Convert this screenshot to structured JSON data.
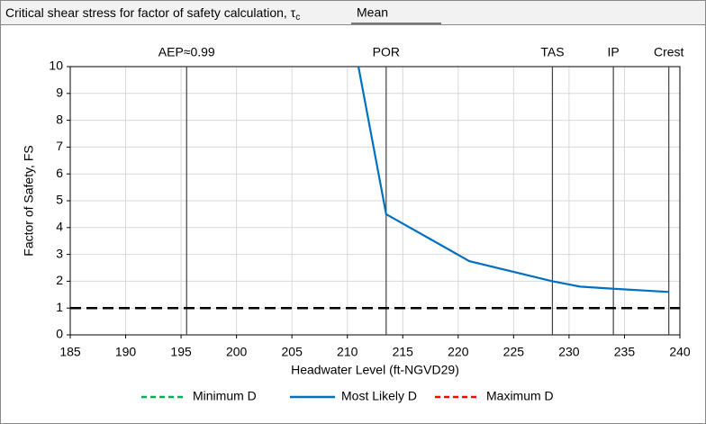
{
  "header": {
    "label": "Critical shear stress for factor of safety calculation, τ",
    "subscript": "c",
    "value": "Mean"
  },
  "chart_data": {
    "type": "line",
    "x_label": "Headwater Level  (ft-NGVD29)",
    "y_label": "Factor of Safety, FS",
    "x": [
      211,
      213.5,
      221,
      228.5,
      231,
      234,
      239
    ],
    "series": [
      {
        "name": "Minimum D",
        "color": "#00b050",
        "line_style": "dashed",
        "values": [
          null,
          null,
          null,
          null,
          null,
          null,
          null
        ]
      },
      {
        "name": "Most Likely D",
        "color": "#0070c0",
        "line_style": "solid",
        "values": [
          10,
          4.5,
          2.75,
          2.0,
          1.8,
          1.72,
          1.6
        ]
      },
      {
        "name": "Maximum D",
        "color": "#ff0000",
        "line_style": "dashed",
        "values": [
          null,
          null,
          null,
          null,
          null,
          null,
          null
        ]
      }
    ],
    "threshold": 1,
    "markers": [
      {
        "x": 195.5,
        "label": "AEP≈0.99"
      },
      {
        "x": 213.5,
        "label": "POR"
      },
      {
        "x": 228.5,
        "label": "TAS"
      },
      {
        "x": 234,
        "label": "IP"
      },
      {
        "x": 239,
        "label": "Crest"
      }
    ],
    "xlim": [
      185,
      240
    ],
    "xticks": [
      185,
      190,
      195,
      200,
      205,
      210,
      215,
      220,
      225,
      230,
      235,
      240
    ],
    "ylim": [
      0,
      10
    ],
    "yticks": [
      0,
      1,
      2,
      3,
      4,
      5,
      6,
      7,
      8,
      9,
      10
    ],
    "grid": true,
    "legend": "bottom"
  }
}
